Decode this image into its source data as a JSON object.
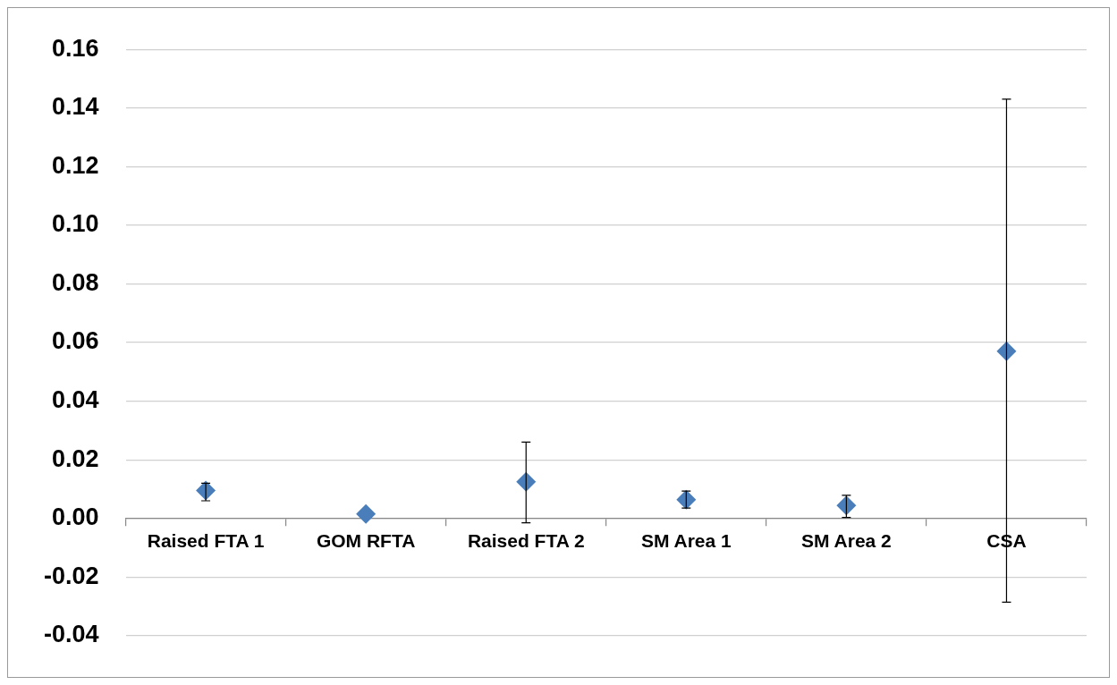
{
  "chart_data": {
    "type": "scatter",
    "categories": [
      "Raised FTA 1",
      "GOM RFTA",
      "Raised FTA 2",
      "SM Area 1",
      "SM Area 2",
      "CSA"
    ],
    "series": [
      {
        "color": "#4a7ebb",
        "values": [
          0.0095,
          0.0015,
          0.0125,
          0.0064,
          0.0044,
          0.057
        ],
        "errors": [
          [
            0.006,
            0.012
          ],
          null,
          [
            -0.0015,
            0.026
          ],
          [
            0.0035,
            0.0093
          ],
          [
            0.0003,
            0.0079
          ],
          [
            -0.0286,
            0.143
          ]
        ]
      }
    ],
    "ylim": [
      -0.04,
      0.16
    ],
    "yticks": [
      {
        "value": -0.04,
        "label": "-0.04"
      },
      {
        "value": -0.02,
        "label": "-0.02"
      },
      {
        "value": 0,
        "label": "0.00"
      },
      {
        "value": 0.02,
        "label": "0.02"
      },
      {
        "value": 0.04,
        "label": "0.04"
      },
      {
        "value": 0.06,
        "label": "0.06"
      },
      {
        "value": 0.08,
        "label": "0.08"
      },
      {
        "value": 0.1,
        "label": "0.10"
      },
      {
        "value": 0.12,
        "label": "0.12"
      },
      {
        "value": 0.14,
        "label": "0.14"
      },
      {
        "value": 0.16,
        "label": "0.16"
      }
    ],
    "grid": "y",
    "legend": false,
    "marker": "diamond"
  }
}
